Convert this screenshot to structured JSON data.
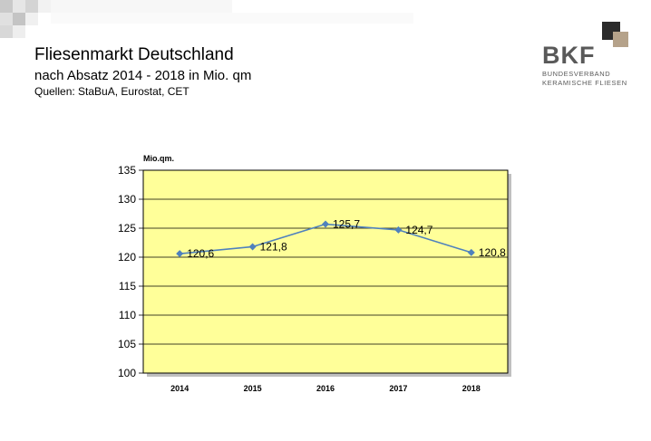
{
  "header": {
    "title": "Fliesenmarkt Deutschland",
    "subtitle": "nach Absatz 2014 - 2018 in Mio. qm",
    "sources": "Quellen: StaBuA, Eurostat, CET"
  },
  "logo": {
    "name": "BKF",
    "line1": "BUNDESVERBAND",
    "line2": "KERAMISCHE FLIESEN",
    "colors": {
      "dark": "#2b2b2b",
      "light": "#b5a28a",
      "text": "#595959"
    }
  },
  "chart_data": {
    "type": "line",
    "categories": [
      "2014",
      "2015",
      "2016",
      "2017",
      "2018"
    ],
    "series": [
      {
        "values": [
          120.6,
          121.8,
          125.7,
          124.7,
          120.8
        ],
        "labels": [
          "120,6",
          "121,8",
          "125,7",
          "124,7",
          "120,8"
        ]
      }
    ],
    "ylabel": "Mio.qm.",
    "ylim": [
      100,
      135
    ],
    "yticks": [
      100,
      105,
      110,
      115,
      120,
      125,
      130,
      135
    ],
    "grid": true,
    "plot_background": "#ffff99",
    "line_color": "#4f81bd"
  }
}
